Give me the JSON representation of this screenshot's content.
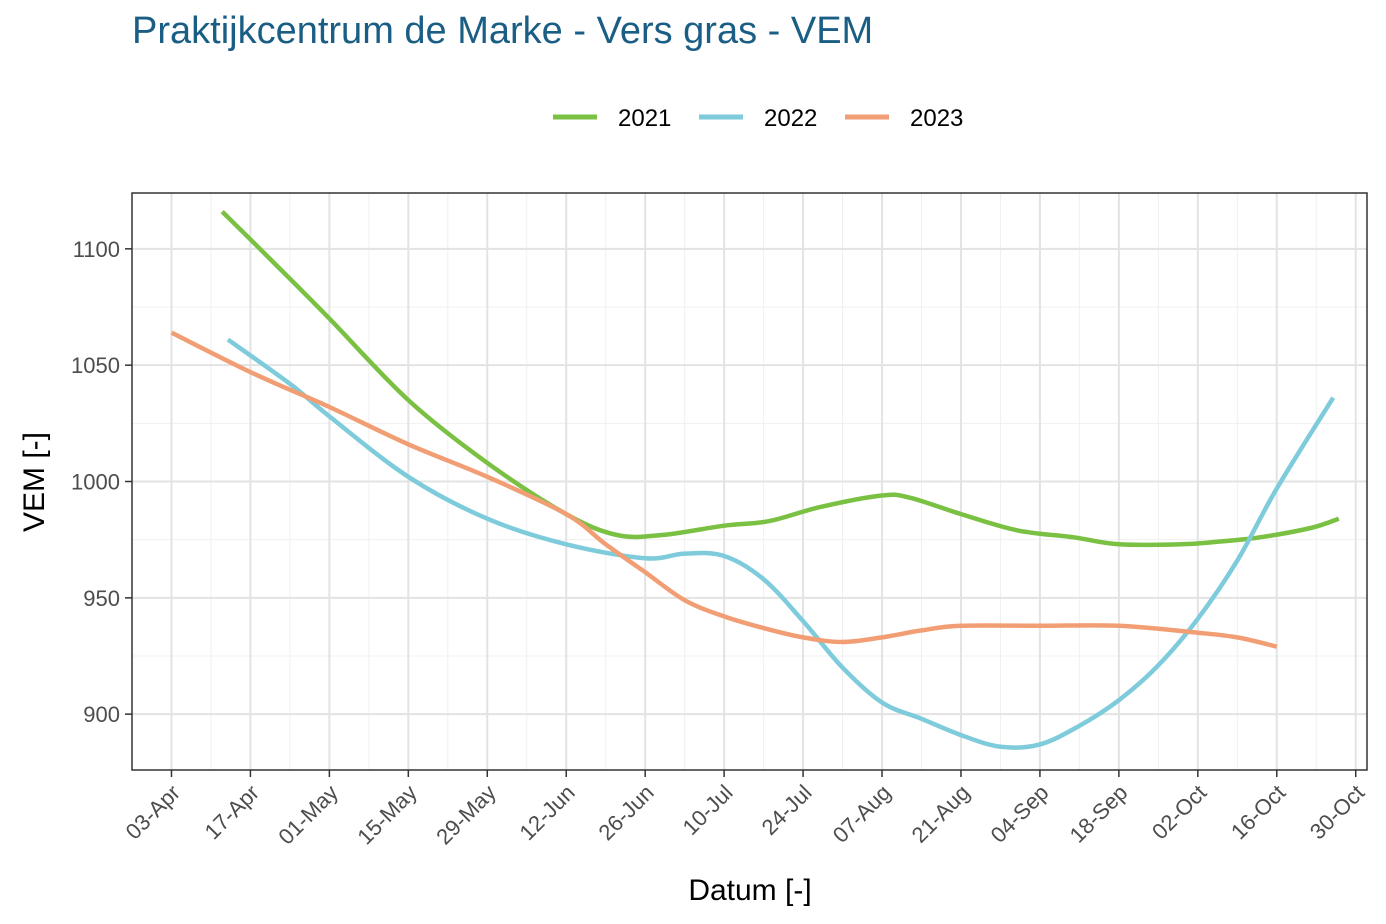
{
  "chart_data": {
    "type": "line",
    "title": "Praktijkcentrum de Marke - Vers gras - VEM",
    "xlabel": "Datum [-]",
    "ylabel": "VEM [-]",
    "x_ticks": [
      "03-Apr",
      "17-Apr",
      "01-May",
      "15-May",
      "29-May",
      "12-Jun",
      "26-Jun",
      "10-Jul",
      "24-Jul",
      "07-Aug",
      "21-Aug",
      "04-Sep",
      "18-Sep",
      "02-Oct",
      "16-Oct",
      "30-Oct"
    ],
    "xlim": [
      "2023-03-27",
      "2023-11-01"
    ],
    "y_ticks": [
      900,
      950,
      1000,
      1050,
      1100
    ],
    "ylim": [
      876,
      1124
    ],
    "grid": true,
    "legend_position": "top",
    "series": [
      {
        "name": "2021",
        "color": "#7ac143",
        "points": [
          [
            "2023-04-12",
            1116
          ],
          [
            "2023-04-22",
            1092
          ],
          [
            "2023-05-01",
            1070
          ],
          [
            "2023-05-15",
            1035
          ],
          [
            "2023-05-29",
            1008
          ],
          [
            "2023-06-12",
            986
          ],
          [
            "2023-06-21",
            977
          ],
          [
            "2023-06-29",
            977
          ],
          [
            "2023-07-10",
            981
          ],
          [
            "2023-07-18",
            983
          ],
          [
            "2023-07-27",
            989
          ],
          [
            "2023-08-07",
            994
          ],
          [
            "2023-08-12",
            993
          ],
          [
            "2023-08-21",
            986
          ],
          [
            "2023-08-31",
            979
          ],
          [
            "2023-09-10",
            976
          ],
          [
            "2023-09-18",
            973
          ],
          [
            "2023-09-29",
            973
          ],
          [
            "2023-10-05",
            974
          ],
          [
            "2023-10-13",
            976
          ],
          [
            "2023-10-22",
            980
          ],
          [
            "2023-10-27",
            984
          ]
        ]
      },
      {
        "name": "2022",
        "color": "#7ecbdb",
        "points": [
          [
            "2023-04-13",
            1061
          ],
          [
            "2023-04-24",
            1042
          ],
          [
            "2023-05-01",
            1028
          ],
          [
            "2023-05-15",
            1002
          ],
          [
            "2023-05-29",
            984
          ],
          [
            "2023-06-12",
            973
          ],
          [
            "2023-06-26",
            967
          ],
          [
            "2023-07-03",
            969
          ],
          [
            "2023-07-10",
            968
          ],
          [
            "2023-07-17",
            958
          ],
          [
            "2023-07-24",
            940
          ],
          [
            "2023-07-31",
            920
          ],
          [
            "2023-08-07",
            905
          ],
          [
            "2023-08-14",
            898
          ],
          [
            "2023-08-21",
            891
          ],
          [
            "2023-08-28",
            886
          ],
          [
            "2023-09-04",
            887
          ],
          [
            "2023-09-11",
            895
          ],
          [
            "2023-09-18",
            906
          ],
          [
            "2023-09-25",
            921
          ],
          [
            "2023-10-02",
            941
          ],
          [
            "2023-10-09",
            966
          ],
          [
            "2023-10-16",
            997
          ],
          [
            "2023-10-26",
            1036
          ]
        ]
      },
      {
        "name": "2023",
        "color": "#f29e74",
        "points": [
          [
            "2023-04-03",
            1064
          ],
          [
            "2023-04-17",
            1047
          ],
          [
            "2023-05-01",
            1032
          ],
          [
            "2023-05-15",
            1016
          ],
          [
            "2023-05-29",
            1002
          ],
          [
            "2023-06-12",
            986
          ],
          [
            "2023-06-19",
            973
          ],
          [
            "2023-06-26",
            961
          ],
          [
            "2023-07-03",
            949
          ],
          [
            "2023-07-10",
            942
          ],
          [
            "2023-07-17",
            937
          ],
          [
            "2023-07-24",
            933
          ],
          [
            "2023-07-31",
            931
          ],
          [
            "2023-08-07",
            933
          ],
          [
            "2023-08-14",
            936
          ],
          [
            "2023-08-21",
            938
          ],
          [
            "2023-09-04",
            938
          ],
          [
            "2023-09-18",
            938
          ],
          [
            "2023-10-02",
            935
          ],
          [
            "2023-10-09",
            933
          ],
          [
            "2023-10-16",
            929
          ]
        ]
      }
    ]
  }
}
